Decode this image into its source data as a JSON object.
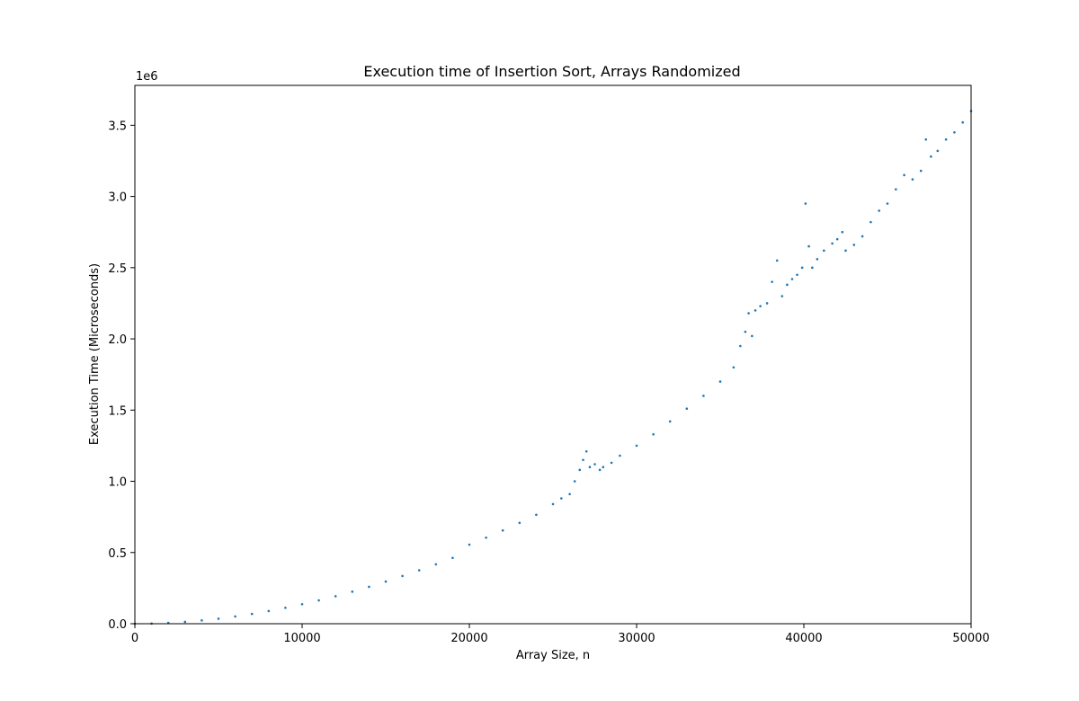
{
  "chart_data": {
    "type": "scatter",
    "title": "Execution time of Insertion Sort, Arrays Randomized",
    "xlabel": "Array Size, n",
    "ylabel": "Execution Time (Microseconds)",
    "y_offset_label": "1e6",
    "xlim": [
      0,
      50000
    ],
    "ylim": [
      0,
      3.78
    ],
    "x_ticks": [
      0,
      10000,
      20000,
      30000,
      40000,
      50000
    ],
    "x_tick_labels": [
      "0",
      "10000",
      "20000",
      "30000",
      "40000",
      "50000"
    ],
    "y_ticks": [
      0,
      0.5,
      1.0,
      1.5,
      2.0,
      2.5,
      3.0,
      3.5
    ],
    "y_tick_labels": [
      "0.0",
      "0.5",
      "1.0",
      "1.5",
      "2.0",
      "2.5",
      "3.0",
      "3.5"
    ],
    "grid": false,
    "marker_color": "#1f77b4",
    "series": [
      {
        "x": [
          0,
          1000,
          2000,
          3000,
          4000,
          5000,
          6000,
          7000,
          8000,
          9000,
          10000,
          11000,
          12000,
          13000,
          14000,
          15000,
          16000,
          17000,
          18000,
          19000,
          20000,
          21000,
          22000,
          23000,
          24000,
          25000,
          25500,
          26000,
          26300,
          26600,
          26800,
          27000,
          27200,
          27500,
          27800,
          28000,
          28500,
          29000,
          30000,
          31000,
          32000,
          33000,
          34000,
          35000,
          35800,
          36200,
          36500,
          36700,
          36900,
          37100,
          37400,
          37800,
          38100,
          38400,
          38700,
          39000,
          39300,
          39600,
          39900,
          40100,
          40300,
          40500,
          40800,
          41200,
          41700,
          42000,
          42300,
          42500,
          43000,
          43500,
          44000,
          44500,
          45000,
          45500,
          46000,
          46500,
          47000,
          47300,
          47600,
          48000,
          48500,
          49000,
          49500,
          50000
        ],
        "y": [
          0.0,
          0.001,
          0.006,
          0.013,
          0.023,
          0.035,
          0.051,
          0.069,
          0.089,
          0.112,
          0.137,
          0.164,
          0.193,
          0.225,
          0.259,
          0.296,
          0.335,
          0.375,
          0.417,
          0.462,
          0.555,
          0.604,
          0.655,
          0.708,
          0.765,
          0.84,
          0.88,
          0.91,
          1.0,
          1.08,
          1.15,
          1.21,
          1.1,
          1.12,
          1.08,
          1.1,
          1.13,
          1.18,
          1.25,
          1.33,
          1.42,
          1.51,
          1.6,
          1.7,
          1.8,
          1.95,
          2.05,
          2.18,
          2.02,
          2.2,
          2.23,
          2.25,
          2.4,
          2.55,
          2.3,
          2.38,
          2.42,
          2.45,
          2.5,
          2.95,
          2.65,
          2.5,
          2.56,
          2.62,
          2.67,
          2.7,
          2.75,
          2.62,
          2.66,
          2.72,
          2.82,
          2.9,
          2.95,
          3.05,
          3.15,
          3.12,
          3.18,
          3.4,
          3.28,
          3.32,
          3.4,
          3.45,
          3.52,
          3.6
        ]
      }
    ]
  }
}
